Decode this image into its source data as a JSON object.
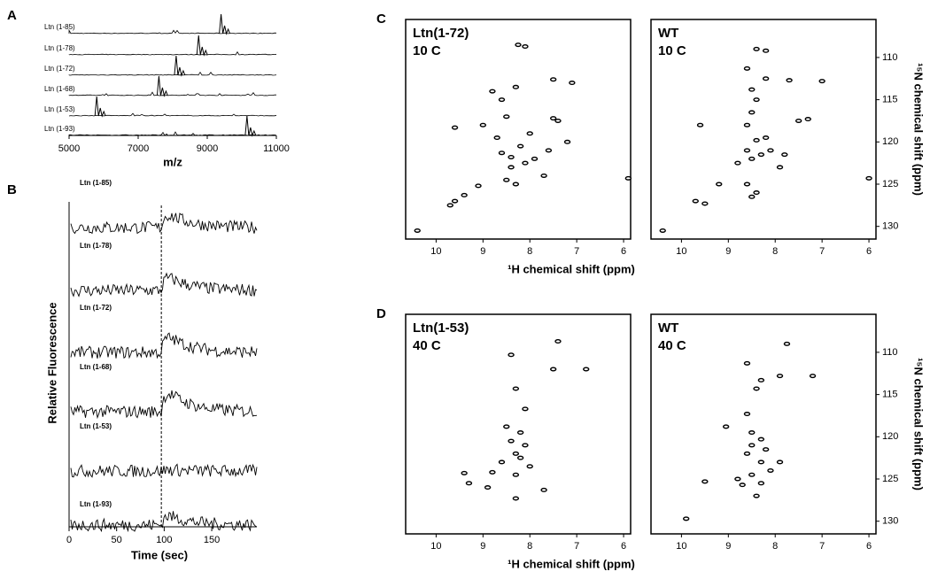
{
  "panels": {
    "A": {
      "label": "A",
      "xlim": [
        5000,
        11000
      ],
      "xticks": [
        5000,
        7000,
        9000,
        11000
      ],
      "xlabel": "m/z",
      "traces": [
        {
          "name": "Ltn (1-85)",
          "peak": 9400
        },
        {
          "name": "Ltn (1-78)",
          "peak": 8750
        },
        {
          "name": "Ltn (1-72)",
          "peak": 8100
        },
        {
          "name": "Ltn (1-68)",
          "peak": 7600
        },
        {
          "name": "Ltn (1-53)",
          "peak": 5800
        },
        {
          "name": "Ltn (1-93)",
          "peak": 10150
        }
      ]
    },
    "B": {
      "label": "B",
      "xlim": [
        0,
        190
      ],
      "xticks": [
        0,
        50,
        100,
        150
      ],
      "xlabel": "Time (sec)",
      "ylabel": "Relative Fluorescence",
      "marker": 97,
      "traces": [
        "Ltn (1-85)",
        "Ltn (1-78)",
        "Ltn (1-72)",
        "Ltn (1-68)",
        "Ltn (1-53)",
        "Ltn (1-93)"
      ]
    },
    "C": {
      "label": "C",
      "xlabel": "¹H chemical shift (ppm)",
      "ylabel": "¹⁵N chemical shift (ppm)",
      "xlim": [
        10.65,
        5.85
      ],
      "xticks": [
        10,
        9,
        8,
        7,
        6
      ],
      "ylim": [
        105.5,
        131.5
      ],
      "yticks": [
        110,
        115,
        120,
        125,
        130
      ],
      "spectra": [
        {
          "title": "Ltn(1-72)",
          "condition": "10 C",
          "x": [
            10.4,
            9.7,
            9.6,
            9.4,
            9.1,
            8.5,
            8.3,
            8.25,
            8.1,
            7.5,
            7.1,
            7.4,
            7.5,
            8.8,
            8.6,
            9.6,
            9,
            8.3,
            8.5,
            8.7,
            8.6,
            8.4,
            8.2,
            7.9,
            8.4,
            7.6,
            7.7,
            8,
            7.2,
            8.1,
            5.9
          ],
          "y": [
            130.5,
            127.5,
            127,
            126.3,
            125.2,
            124.5,
            125,
            108.5,
            108.7,
            112.6,
            113,
            117.5,
            117.2,
            114,
            115,
            118.3,
            118,
            113.5,
            117,
            119.5,
            121.3,
            121.8,
            120.5,
            122,
            123,
            121,
            124,
            119,
            120,
            122.5,
            124.3
          ]
        },
        {
          "title": "WT",
          "condition": "10 C",
          "x": [
            10.4,
            9.7,
            9.5,
            9.2,
            8.6,
            8.4,
            8.5,
            8.4,
            8.2,
            8.6,
            7.7,
            7,
            7.5,
            7.3,
            8.2,
            8.5,
            9.6,
            8.6,
            8.4,
            8.6,
            8.5,
            8.3,
            8.8,
            8.1,
            7.8,
            7.9,
            8.4,
            8.5,
            6,
            8.2
          ],
          "y": [
            130.5,
            127,
            127.3,
            125,
            125,
            126,
            126.5,
            109,
            109.2,
            111.3,
            112.7,
            112.8,
            117.5,
            117.3,
            112.5,
            113.8,
            118,
            118,
            119.8,
            121,
            122,
            121.5,
            122.5,
            121,
            121.5,
            123,
            115,
            116.5,
            124.3,
            119.5
          ]
        }
      ]
    },
    "D": {
      "label": "D",
      "xlabel": "¹H chemical shift (ppm)",
      "ylabel": "¹⁵N chemical shift (ppm)",
      "xlim": [
        10.65,
        5.85
      ],
      "xticks": [
        10,
        9,
        8,
        7,
        6
      ],
      "ylim": [
        105.5,
        131.5
      ],
      "yticks": [
        110,
        115,
        120,
        125,
        130
      ],
      "spectra": [
        {
          "title": "Ltn(1-53)",
          "condition": "40 C",
          "x": [
            7.4,
            8.4,
            7.5,
            6.8,
            8.3,
            8.1,
            8.5,
            8.2,
            8.1,
            8.3,
            8.2,
            8,
            8.3,
            8.6,
            9.4,
            9.3,
            8.9,
            8.3,
            7.7,
            8.8,
            8.4
          ],
          "y": [
            108.7,
            110.3,
            112,
            112,
            114.3,
            116.7,
            118.8,
            119.5,
            121,
            122,
            122.5,
            123.5,
            124.5,
            123,
            124.3,
            125.5,
            126,
            127.3,
            126.3,
            124.2,
            120.5
          ]
        },
        {
          "title": "WT",
          "condition": "40 C",
          "x": [
            7.75,
            8.6,
            7.9,
            7.2,
            8.3,
            8.4,
            8.6,
            9.05,
            8.5,
            8.3,
            8.5,
            8.2,
            8.6,
            8.3,
            8.5,
            8.8,
            9.5,
            9.9,
            8.4,
            8.1,
            7.9,
            8.7,
            8.3
          ],
          "y": [
            109,
            111.3,
            112.8,
            112.8,
            113.3,
            114.3,
            117.3,
            118.8,
            119.5,
            120.3,
            121,
            121.5,
            122,
            123,
            124.5,
            125,
            125.3,
            129.7,
            127,
            124,
            123,
            125.7,
            125.5
          ]
        }
      ]
    }
  }
}
